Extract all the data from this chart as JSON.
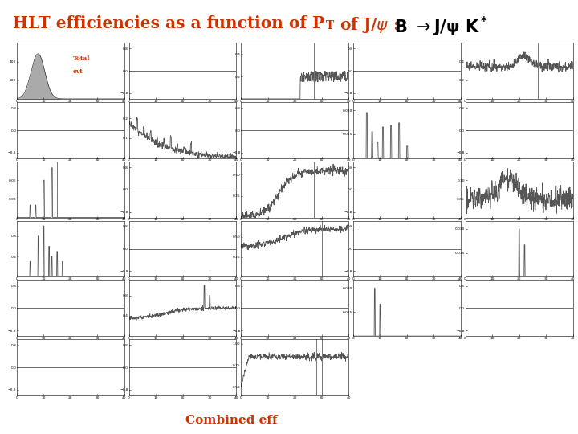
{
  "title_color": "#cc3300",
  "bold_color": "#000000",
  "bg_color": "#ffffff",
  "plot_line_color": "#555555",
  "label_topleft_line1": "Total",
  "label_topleft_line2": "evt",
  "label_bottom": "Combined eff",
  "nrows": 6,
  "ncols": 5,
  "last_row_ncols": 3
}
